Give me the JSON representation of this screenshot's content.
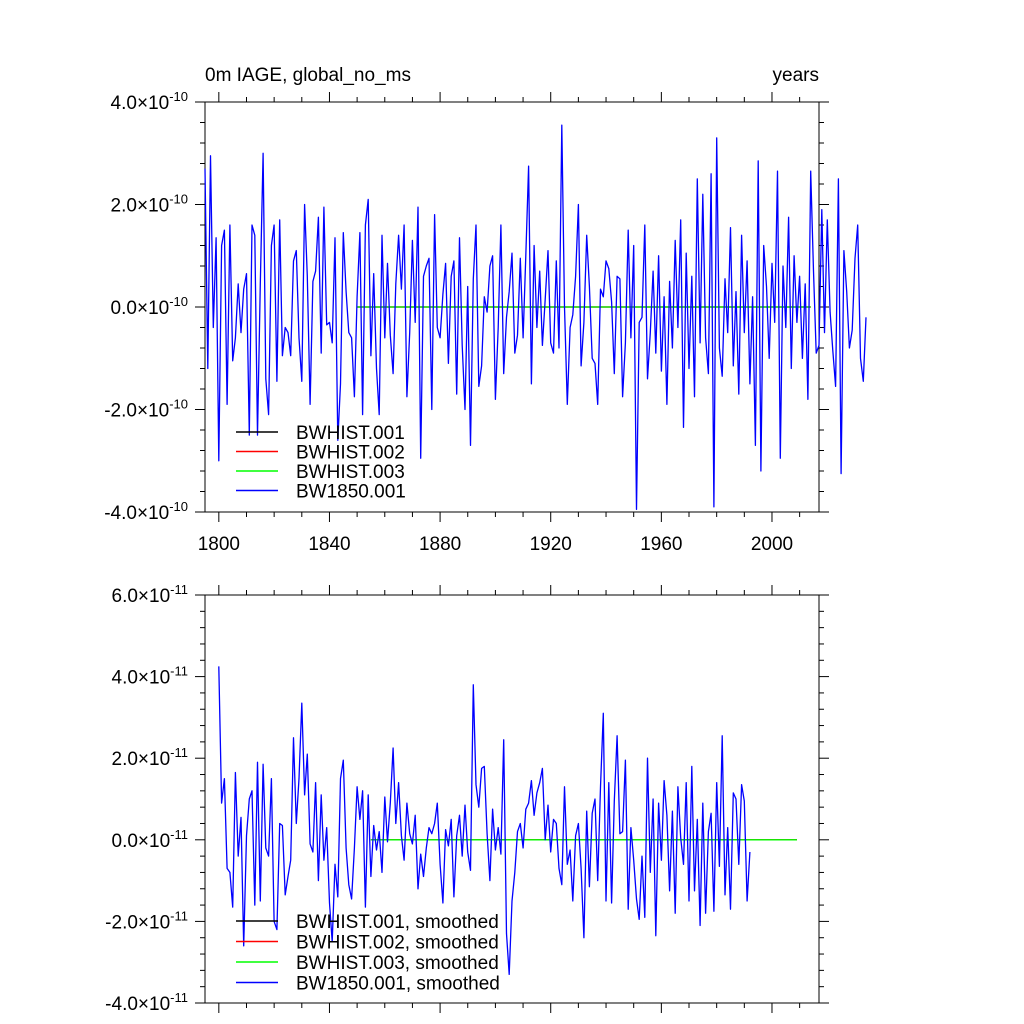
{
  "chart_data": [
    {
      "type": "line",
      "title": "0m IAGE, global_no_ms",
      "units": "years",
      "xlim": [
        1795,
        2017
      ],
      "ylim": [
        -4e-10,
        4e-10
      ],
      "x_ticks": [
        1800,
        1840,
        1880,
        1920,
        1960,
        2000
      ],
      "x_tick_labels": [
        "1800",
        "1840",
        "1880",
        "1920",
        "1960",
        "2000"
      ],
      "y_ticks": [
        -4e-10,
        -2e-10,
        0.0,
        2e-10,
        4e-10
      ],
      "y_tick_labels": [
        {
          "mant": "4.0",
          "exp": "-10"
        },
        {
          "mant": "2.0",
          "exp": "-10"
        },
        {
          "mant": "0.0",
          "exp": "-10"
        },
        {
          "mant": "-2.0",
          "exp": "-10"
        },
        {
          "mant": "-4.0",
          "exp": "-10"
        }
      ],
      "legend": [
        {
          "label": "BWHIST.001",
          "color": "#000000"
        },
        {
          "label": "BWHIST.002",
          "color": "#ff0000"
        },
        {
          "label": "BWHIST.003",
          "color": "#00ff00"
        },
        {
          "label": "BW1850.001",
          "color": "#0000ff"
        }
      ],
      "series": [
        {
          "name": "BWHIST.001",
          "color": "#000000",
          "x": [
            1850,
            2014
          ],
          "values": [
            0.0,
            0.0
          ]
        },
        {
          "name": "BWHIST.002",
          "color": "#ff0000",
          "x": [
            1850,
            2014
          ],
          "values": [
            0.0,
            0.0
          ]
        },
        {
          "name": "BWHIST.003",
          "color": "#00ff00",
          "x": [
            1850,
            2014
          ],
          "values": [
            0.0,
            0.0
          ]
        },
        {
          "name": "BW1850.001",
          "color": "#0000ff",
          "x_start": 1795,
          "values": [
            2.7e-10,
            -1.2e-10,
            2.95e-10,
            -4e-11,
            1.35e-10,
            -3e-10,
            1.2e-10,
            1.5e-10,
            -1.9e-10,
            1.6e-10,
            -1.05e-10,
            -6e-11,
            4.5e-11,
            -5e-11,
            3.5e-11,
            6.5e-11,
            -2.5e-10,
            1.6e-10,
            1.4e-10,
            -2.5e-10,
            4.5e-11,
            3e-10,
            -1.4e-10,
            -2.1e-10,
            1.2e-10,
            1.6e-10,
            -1.45e-10,
            1.7e-10,
            -9.5e-11,
            -4e-11,
            -5e-11,
            -9.5e-11,
            9e-11,
            1.1e-10,
            -6e-11,
            -1.45e-10,
            2e-10,
            6e-11,
            -1.9e-10,
            5e-11,
            7e-11,
            1.75e-10,
            -9e-11,
            1.95e-10,
            -3.5e-11,
            -3e-11,
            -7e-11,
            1.35e-10,
            -2.6e-10,
            -1.5e-10,
            1.45e-10,
            3e-11,
            -5e-11,
            -6e-11,
            -1.75e-10,
            2e-11,
            1.45e-10,
            -2.1e-10,
            1.6e-10,
            2.1e-10,
            -9.5e-11,
            6.5e-11,
            -1.2e-10,
            -2.1e-10,
            1.4e-10,
            -6e-11,
            8.5e-11,
            -5.5e-11,
            -1.3e-10,
            4.5e-11,
            1.4e-10,
            3.5e-11,
            1.6e-10,
            -1.75e-10,
            -5e-11,
            1.3e-10,
            -3e-11,
            1.95e-10,
            -2.95e-10,
            6e-11,
            8e-11,
            9.5e-11,
            -2e-10,
            1.8e-10,
            -4e-11,
            -6e-11,
            2.5e-11,
            8.5e-11,
            -1.1e-10,
            6e-11,
            9e-11,
            -1.7e-10,
            1.35e-10,
            -7.5e-11,
            -2e-10,
            4e-11,
            -2.7e-10,
            5.5e-11,
            1.6e-10,
            -1.55e-10,
            -1.15e-10,
            2e-11,
            -1e-11,
            8e-11,
            1e-10,
            -1.8e-10,
            -4e-11,
            1.6e-10,
            -1.3e-10,
            -2e-11,
            3e-11,
            1.05e-10,
            -9e-11,
            -5.5e-11,
            9.5e-11,
            -6e-11,
            1e-10,
            2.75e-10,
            -1.5e-10,
            1.2e-10,
            -4e-11,
            7e-11,
            -7.5e-11,
            1.5e-11,
            1.1e-10,
            -7e-11,
            -9e-11,
            9e-11,
            -8e-11,
            3.55e-10,
            0.0,
            -1.9e-10,
            -4e-11,
            -1.5e-11,
            6e-11,
            2e-10,
            -1.15e-10,
            -3e-11,
            1.4e-10,
            4e-11,
            -1e-10,
            -1.1e-10,
            -1.9e-10,
            3.5e-11,
            2e-11,
            9e-11,
            7.5e-11,
            1e-11,
            -1.3e-10,
            6e-11,
            5.5e-11,
            -1.75e-10,
            -7e-11,
            1.5e-10,
            -6e-11,
            1.2e-10,
            -3.95e-10,
            -3e-11,
            -2e-11,
            1.6e-10,
            -1.4e-10,
            -5e-11,
            7e-11,
            -9e-11,
            1e-10,
            -1.25e-10,
            2e-11,
            -1.9e-10,
            5e-11,
            -8e-11,
            1.3e-10,
            -4e-11,
            1.7e-10,
            -2.35e-10,
            1.05e-10,
            -1.2e-10,
            6e-11,
            -1.75e-10,
            2.5e-10,
            -7e-11,
            2.2e-10,
            -6e-11,
            -1.3e-10,
            2.6e-10,
            -3.9e-10,
            3.3e-10,
            -8e-11,
            -1.35e-10,
            5.5e-11,
            -5e-11,
            1.55e-10,
            -1.15e-10,
            3e-11,
            -1.7e-10,
            1.4e-10,
            -5e-11,
            9e-11,
            -1.5e-10,
            2e-11,
            -2.7e-10,
            2.85e-10,
            -3.2e-10,
            1.2e-10,
            4e-11,
            -1e-10,
            8.5e-11,
            -3e-11,
            2.65e-10,
            -2.95e-10,
            8e-11,
            -4e-11,
            1.75e-10,
            -1.2e-10,
            1e-10,
            -3e-11,
            6e-11,
            -1e-10,
            4.5e-11,
            -1.8e-10,
            2.65e-10,
            7e-11,
            -9e-11,
            -7.5e-11,
            1.9e-10,
            -5e-11,
            1.7e-10,
            -1e-11,
            -8.5e-11,
            -1.55e-10,
            2.5e-10,
            -3.25e-10,
            1.1e-10,
            3e-11,
            -8e-11,
            -4.5e-11,
            9.5e-11,
            1.6e-10,
            -1e-10,
            -1.45e-10,
            -2e-11
          ]
        }
      ]
    },
    {
      "type": "line",
      "title": "",
      "xlim": [
        1795,
        2017
      ],
      "ylim": [
        -4e-11,
        6e-11
      ],
      "x_ticks": [
        1800,
        1840,
        1880,
        1920,
        1960,
        2000
      ],
      "y_ticks": [
        -4e-11,
        -2e-11,
        0.0,
        2e-11,
        4e-11,
        6e-11
      ],
      "y_tick_labels": [
        {
          "mant": "6.0",
          "exp": "-11"
        },
        {
          "mant": "4.0",
          "exp": "-11"
        },
        {
          "mant": "2.0",
          "exp": "-11"
        },
        {
          "mant": "0.0",
          "exp": "-11"
        },
        {
          "mant": "-2.0",
          "exp": "-11"
        },
        {
          "mant": "-4.0",
          "exp": "-11"
        }
      ],
      "legend": [
        {
          "label": "BWHIST.001, smoothed",
          "color": "#000000"
        },
        {
          "label": "BWHIST.002, smoothed",
          "color": "#ff0000"
        },
        {
          "label": "BWHIST.003, smoothed",
          "color": "#00ff00"
        },
        {
          "label": "BW1850.001, smoothed",
          "color": "#0000ff"
        }
      ],
      "series": [
        {
          "name": "BWHIST.001, smoothed",
          "color": "#000000",
          "x": [
            1855,
            2009
          ],
          "values": [
            0.0,
            0.0
          ]
        },
        {
          "name": "BWHIST.002, smoothed",
          "color": "#ff0000",
          "x": [
            1855,
            2009
          ],
          "values": [
            0.0,
            0.0
          ]
        },
        {
          "name": "BWHIST.003, smoothed",
          "color": "#00ff00",
          "x": [
            1855,
            2009
          ],
          "values": [
            0.0,
            0.0
          ]
        },
        {
          "name": "BW1850.001, smoothed",
          "color": "#0000ff",
          "x_start": 1800,
          "values": [
            4.25e-11,
            9e-12,
            1.5e-11,
            -7e-12,
            -8e-12,
            -1.65e-11,
            1.65e-11,
            -4e-12,
            5.5e-12,
            -2.6e-11,
            1e-12,
            1e-11,
            1.2e-11,
            -1.6e-11,
            1.9e-11,
            -1.5e-11,
            1.85e-11,
            -2e-12,
            -4e-12,
            1.5e-11,
            -2e-11,
            -2.2e-11,
            4e-12,
            3.5e-12,
            -1.35e-11,
            -9e-12,
            -5e-12,
            2.5e-11,
            4e-12,
            1.5e-11,
            3.35e-11,
            1.1e-11,
            2.1e-11,
            -1e-12,
            -3e-12,
            1.4e-11,
            -1e-11,
            1.1e-11,
            -5e-12,
            3e-12,
            -1.55e-11,
            -2.5e-11,
            -6e-12,
            -1.4e-11,
            1.5e-11,
            1.95e-11,
            -2e-12,
            -1.1e-11,
            -1.45e-11,
            -2e-12,
            1.3e-11,
            5e-12,
            1.2e-11,
            -1.65e-11,
            1.1e-11,
            -9e-12,
            3.5e-12,
            -2.5e-12,
            2e-12,
            -8e-12,
            1.05e-11,
            -5e-13,
            9e-12,
            2.25e-11,
            4e-12,
            1.4e-11,
            1e-12,
            -5e-12,
            9e-12,
            1.5e-12,
            -1e-12,
            6e-12,
            -1.2e-11,
            -3.5e-12,
            -9e-12,
            -2e-12,
            3e-12,
            1.5e-12,
            4e-12,
            9e-12,
            -6e-12,
            -1.55e-11,
            2.5e-12,
            -1.5e-12,
            5e-12,
            -1.4e-11,
            1e-12,
            6e-12,
            -4e-12,
            8.5e-12,
            -3e-12,
            -7.5e-12,
            3.8e-11,
            1.35e-11,
            8e-12,
            1.75e-11,
            1.8e-11,
            1.5e-12,
            -1e-11,
            7.5e-12,
            -2.5e-12,
            3e-12,
            -3.5e-12,
            2.45e-11,
            -2.3e-11,
            -3.3e-11,
            -1.5e-11,
            -8e-12,
            2e-12,
            4e-12,
            -2e-12,
            7.5e-12,
            9e-12,
            1.45e-11,
            6e-12,
            1.15e-11,
            1.4e-11,
            1.75e-11,
            0.0,
            8.5e-12,
            -3e-12,
            5e-12,
            4e-12,
            -7e-12,
            -1.1e-11,
            1.3e-11,
            -6e-12,
            -2.5e-12,
            -1.5e-11,
            1e-12,
            4e-12,
            -7e-12,
            -2.4e-11,
            7e-12,
            -1.15e-11,
            6.5e-12,
            1e-11,
            -1e-11,
            1.3e-11,
            3.1e-11,
            -1.5e-11,
            1.4e-11,
            -1.55e-11,
            9.5e-12,
            2.55e-11,
            1.5e-12,
            2e-12,
            1.95e-11,
            -1.7e-11,
            3e-12,
            -5e-12,
            -1.45e-11,
            -1.95e-11,
            -4e-12,
            -1.9e-11,
            2e-11,
            -8e-12,
            1e-11,
            -2.35e-11,
            9e-12,
            -5e-12,
            1.45e-11,
            6e-12,
            -1.25e-11,
            7e-12,
            -1.8e-11,
            1.3e-11,
            5e-13,
            -6e-12,
            1.4e-11,
            -1.5e-11,
            1.8e-11,
            -1.25e-11,
            5e-12,
            -2.1e-11,
            9e-12,
            -1.8e-11,
            2e-12,
            6.5e-12,
            -1.75e-11,
            1.4e-11,
            -6.5e-12,
            2.55e-11,
            -1.35e-11,
            3e-12,
            -1.7e-11,
            1.15e-11,
            1e-11,
            -6e-12,
            1.35e-11,
            9.5e-12,
            -1.5e-11,
            -3e-12
          ]
        }
      ]
    }
  ]
}
